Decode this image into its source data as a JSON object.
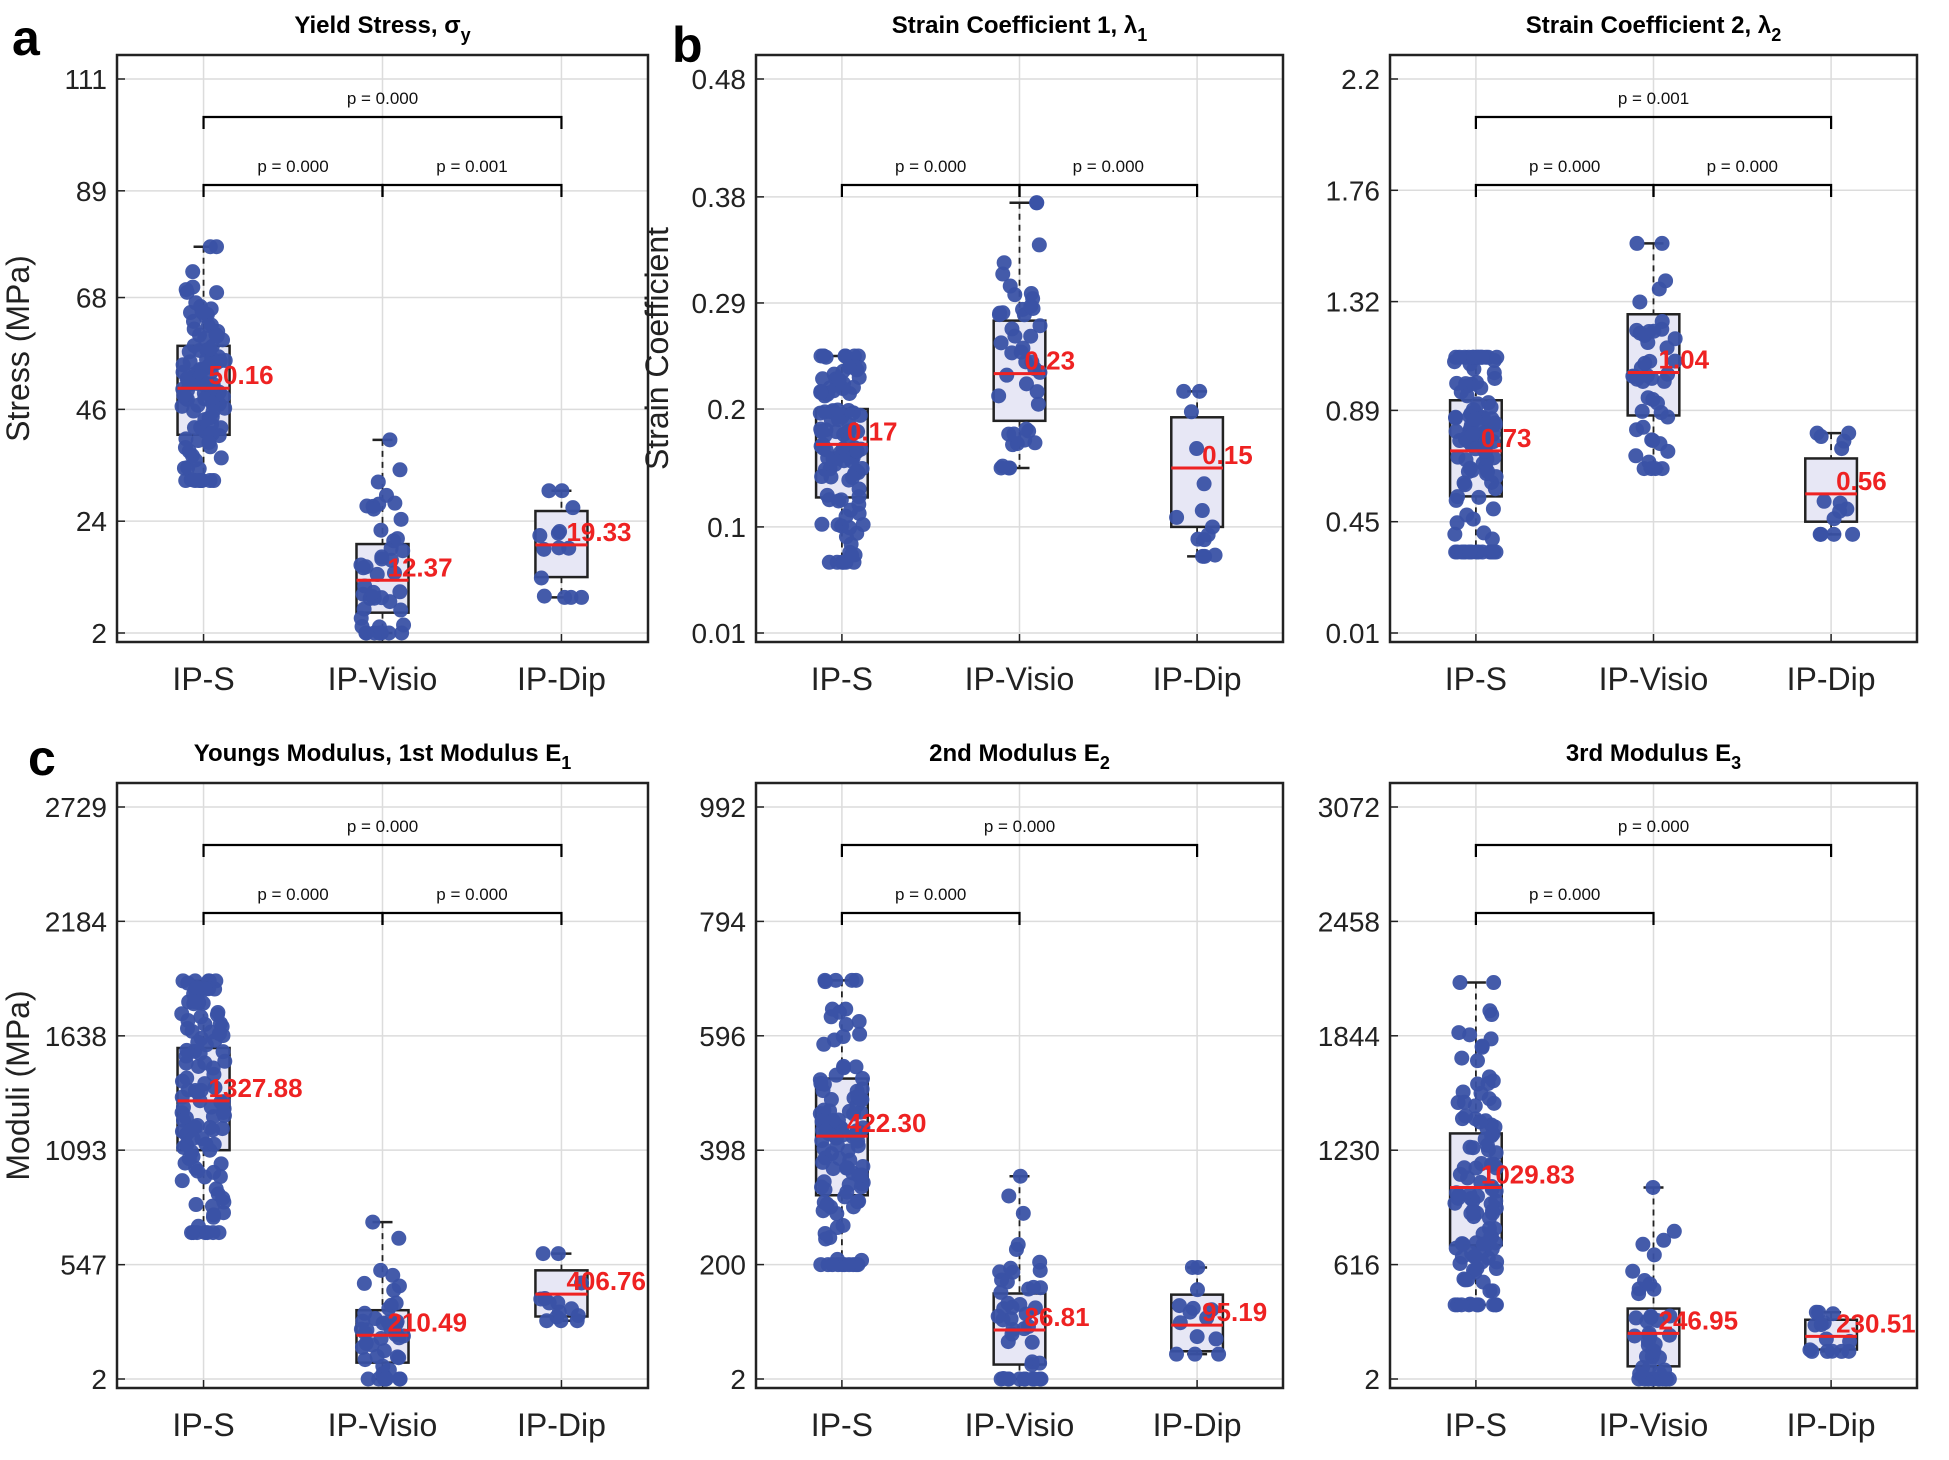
{
  "panel_letters": [
    "a",
    "b",
    "c"
  ],
  "chart_data": [
    {
      "type": "box",
      "title": "Yield Stress, σ",
      "title_sub": "y",
      "ylabel": "Stress (MPa)",
      "ylim": [
        2,
        111
      ],
      "yticks": [
        "2",
        "24",
        "46",
        "68",
        "89",
        "111"
      ],
      "categories": [
        "IP-S",
        "IP-Visio",
        "IP-Dip"
      ],
      "boxes": [
        {
          "min": 32,
          "q1": 41,
          "median": 50.16,
          "q3": 58.5,
          "max": 78,
          "label": "50.16",
          "n": 110
        },
        {
          "min": 2,
          "q1": 6,
          "median": 12.37,
          "q3": 19.5,
          "max": 40,
          "label": "12.37",
          "n": 45
        },
        {
          "min": 9,
          "q1": 13,
          "median": 19.33,
          "q3": 26,
          "max": 30,
          "label": "19.33",
          "n": 14
        }
      ],
      "comparisons": [
        {
          "from": 0,
          "to": 2,
          "level": 2,
          "text": "p = 0.000"
        },
        {
          "from": 0,
          "to": 1,
          "level": 1,
          "text": "p = 0.000"
        },
        {
          "from": 1,
          "to": 2,
          "level": 1,
          "text": "p = 0.001"
        }
      ]
    },
    {
      "type": "box",
      "title": "Strain Coefficient 1, λ",
      "title_sub": "1",
      "ylabel": "Strain Coefficient",
      "ylim": [
        0.01,
        0.48
      ],
      "yticks": [
        "0.01",
        "0.1",
        "0.2",
        "0.29",
        "0.38",
        "0.48"
      ],
      "categories": [
        "IP-S",
        "IP-Visio",
        "IP-Dip"
      ],
      "boxes": [
        {
          "min": 0.07,
          "q1": 0.125,
          "median": 0.17,
          "q3": 0.2,
          "max": 0.245,
          "label": "0.17",
          "n": 110
        },
        {
          "min": 0.15,
          "q1": 0.19,
          "median": 0.23,
          "q3": 0.275,
          "max": 0.375,
          "label": "0.23",
          "n": 45
        },
        {
          "min": 0.075,
          "q1": 0.1,
          "median": 0.15,
          "q3": 0.193,
          "max": 0.215,
          "label": "0.15",
          "n": 14
        }
      ],
      "comparisons": [
        {
          "from": 0,
          "to": 1,
          "level": 1,
          "text": "p = 0.000"
        },
        {
          "from": 1,
          "to": 2,
          "level": 1,
          "text": "p = 0.000"
        }
      ]
    },
    {
      "type": "box",
      "title": "Strain Coefficient 2, λ",
      "title_sub": "2",
      "ylabel": "",
      "ylim": [
        0.01,
        2.2
      ],
      "yticks": [
        "0.01",
        "0.45",
        "0.89",
        "1.32",
        "1.76",
        "2.2"
      ],
      "categories": [
        "IP-S",
        "IP-Visio",
        "IP-Dip"
      ],
      "boxes": [
        {
          "min": 0.33,
          "q1": 0.55,
          "median": 0.73,
          "q3": 0.93,
          "max": 1.1,
          "label": "0.73",
          "n": 110
        },
        {
          "min": 0.66,
          "q1": 0.87,
          "median": 1.04,
          "q3": 1.27,
          "max": 1.55,
          "label": "1.04",
          "n": 45
        },
        {
          "min": 0.4,
          "q1": 0.45,
          "median": 0.56,
          "q3": 0.7,
          "max": 0.8,
          "label": "0.56",
          "n": 14
        }
      ],
      "comparisons": [
        {
          "from": 0,
          "to": 2,
          "level": 2,
          "text": "p = 0.001"
        },
        {
          "from": 0,
          "to": 1,
          "level": 1,
          "text": "p = 0.000"
        },
        {
          "from": 1,
          "to": 2,
          "level": 1,
          "text": "p = 0.000"
        }
      ]
    },
    {
      "type": "box",
      "title": "Youngs Modulus, 1st Modulus E",
      "title_sub": "1",
      "ylabel": "Moduli (MPa)",
      "ylim": [
        2,
        2729
      ],
      "yticks": [
        "2",
        "547",
        "1093",
        "1638",
        "2184",
        "2729"
      ],
      "categories": [
        "IP-S",
        "IP-Visio",
        "IP-Dip"
      ],
      "boxes": [
        {
          "min": 700,
          "q1": 1093,
          "median": 1327.88,
          "q3": 1580,
          "max": 1900,
          "label": "1327.88",
          "n": 110
        },
        {
          "min": 2,
          "q1": 80,
          "median": 210.49,
          "q3": 330,
          "max": 750,
          "label": "210.49",
          "n": 45
        },
        {
          "min": 280,
          "q1": 300,
          "median": 406.76,
          "q3": 520,
          "max": 600,
          "label": "406.76",
          "n": 14
        }
      ],
      "comparisons": [
        {
          "from": 0,
          "to": 2,
          "level": 2,
          "text": "p = 0.000"
        },
        {
          "from": 0,
          "to": 1,
          "level": 1,
          "text": "p = 0.000"
        },
        {
          "from": 1,
          "to": 2,
          "level": 1,
          "text": "p = 0.000"
        }
      ]
    },
    {
      "type": "box",
      "title": "2nd Modulus E",
      "title_sub": "2",
      "ylabel": "",
      "ylim": [
        2,
        992
      ],
      "yticks": [
        "2",
        "200",
        "398",
        "596",
        "794",
        "992"
      ],
      "categories": [
        "IP-S",
        "IP-Visio",
        "IP-Dip"
      ],
      "boxes": [
        {
          "min": 200,
          "q1": 320,
          "median": 422.3,
          "q3": 522,
          "max": 692,
          "label": "422.30",
          "n": 110
        },
        {
          "min": 2,
          "q1": 27,
          "median": 86.81,
          "q3": 150,
          "max": 353,
          "label": "86.81",
          "n": 45
        },
        {
          "min": 45,
          "q1": 50,
          "median": 95.19,
          "q3": 148,
          "max": 195,
          "label": "95.19",
          "n": 14
        }
      ],
      "comparisons": [
        {
          "from": 0,
          "to": 2,
          "level": 2,
          "text": "p = 0.000"
        },
        {
          "from": 0,
          "to": 1,
          "level": 1,
          "text": "p = 0.000"
        }
      ]
    },
    {
      "type": "box",
      "title": "3rd Modulus E",
      "title_sub": "3",
      "ylabel": "",
      "ylim": [
        2,
        3072
      ],
      "yticks": [
        "2",
        "616",
        "1230",
        "1844",
        "2458",
        "3072"
      ],
      "categories": [
        "IP-S",
        "IP-Visio",
        "IP-Dip"
      ],
      "boxes": [
        {
          "min": 400,
          "q1": 720,
          "median": 1029.83,
          "q3": 1320,
          "max": 2130,
          "label": "1029.83",
          "n": 110
        },
        {
          "min": 2,
          "q1": 70,
          "median": 246.95,
          "q3": 380,
          "max": 1030,
          "label": "246.95",
          "n": 45
        },
        {
          "min": 150,
          "q1": 160,
          "median": 230.51,
          "q3": 320,
          "max": 360,
          "label": "230.51",
          "n": 14
        }
      ],
      "comparisons": [
        {
          "from": 0,
          "to": 2,
          "level": 2,
          "text": "p = 0.000"
        },
        {
          "from": 0,
          "to": 1,
          "level": 1,
          "text": "p = 0.000"
        }
      ]
    }
  ],
  "colors": {
    "box_fill": "#e7e7f5",
    "box_stroke": "#222222",
    "median": "#ee2222",
    "points": "#3a52a5",
    "grid": "#dcdcdc",
    "axis": "#222222"
  }
}
